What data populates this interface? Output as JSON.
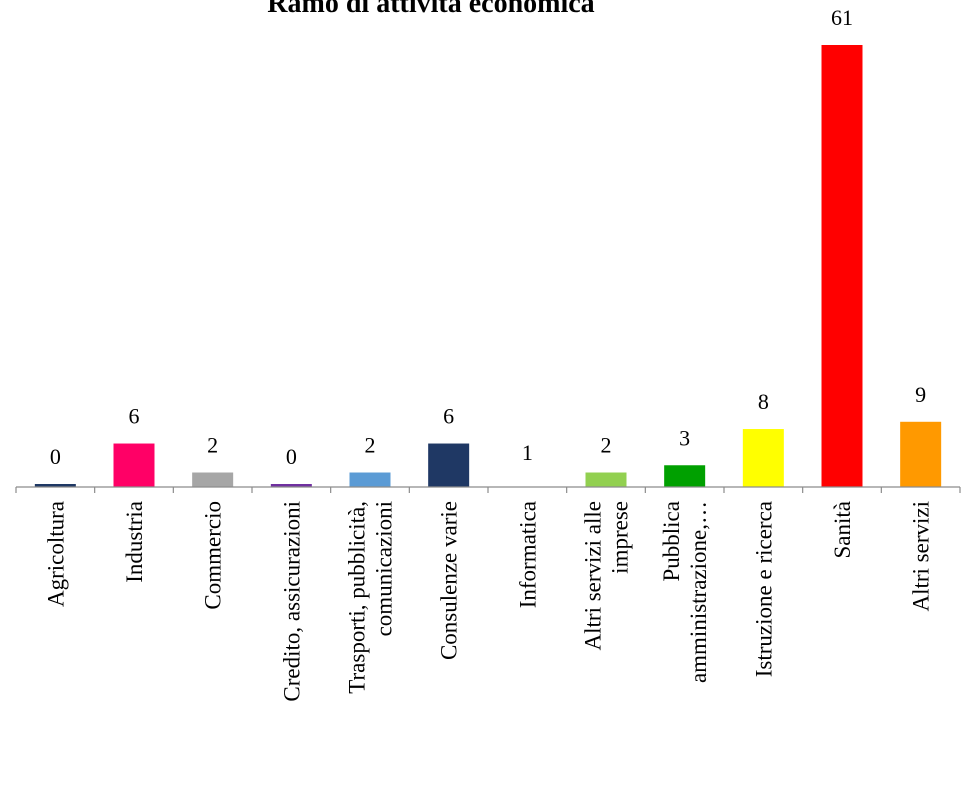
{
  "chart_data": {
    "type": "bar",
    "title": "Ramo di attività economica",
    "xlabel": "",
    "ylabel": "",
    "ylim": [
      0,
      61
    ],
    "grid": false,
    "legend": "none",
    "categories": [
      "Agricoltura",
      "Industria",
      "Commercio",
      "Credito, assicurazioni",
      "Trasporti, pubblicità, comunicazioni",
      "Consulenze varie",
      "Informatica",
      "Altri servizi alle imprese",
      "Pubblica amministrazione,…",
      "Istruzione e ricerca",
      "Sanità",
      "Altri servizi"
    ],
    "category_lines": [
      [
        "Agricoltura"
      ],
      [
        "Industria"
      ],
      [
        "Commercio"
      ],
      [
        "Credito, assicurazioni"
      ],
      [
        "Trasporti, pubblicità,",
        "comunicazioni"
      ],
      [
        "Consulenze varie"
      ],
      [
        "Informatica"
      ],
      [
        "Altri servizi alle",
        "imprese"
      ],
      [
        "Pubblica",
        "amministrazione,…"
      ],
      [
        "Istruzione e ricerca"
      ],
      [
        "Sanità"
      ],
      [
        "Altri servizi"
      ]
    ],
    "values": [
      0,
      6,
      2,
      0,
      2,
      6,
      1,
      2,
      3,
      8,
      61,
      9
    ],
    "data_labels": [
      "0",
      "6",
      "2",
      "0",
      "2",
      "6",
      "1",
      "2",
      "3",
      "8",
      "61",
      "9"
    ],
    "colors": [
      "#1f3864",
      "#ff0066",
      "#a6a6a6",
      "#7030a0",
      "#5b9bd5",
      "#1f3864",
      "#ffffff",
      "#92d050",
      "#00a000",
      "#ffff00",
      "#ff0000",
      "#ff9900"
    ]
  }
}
